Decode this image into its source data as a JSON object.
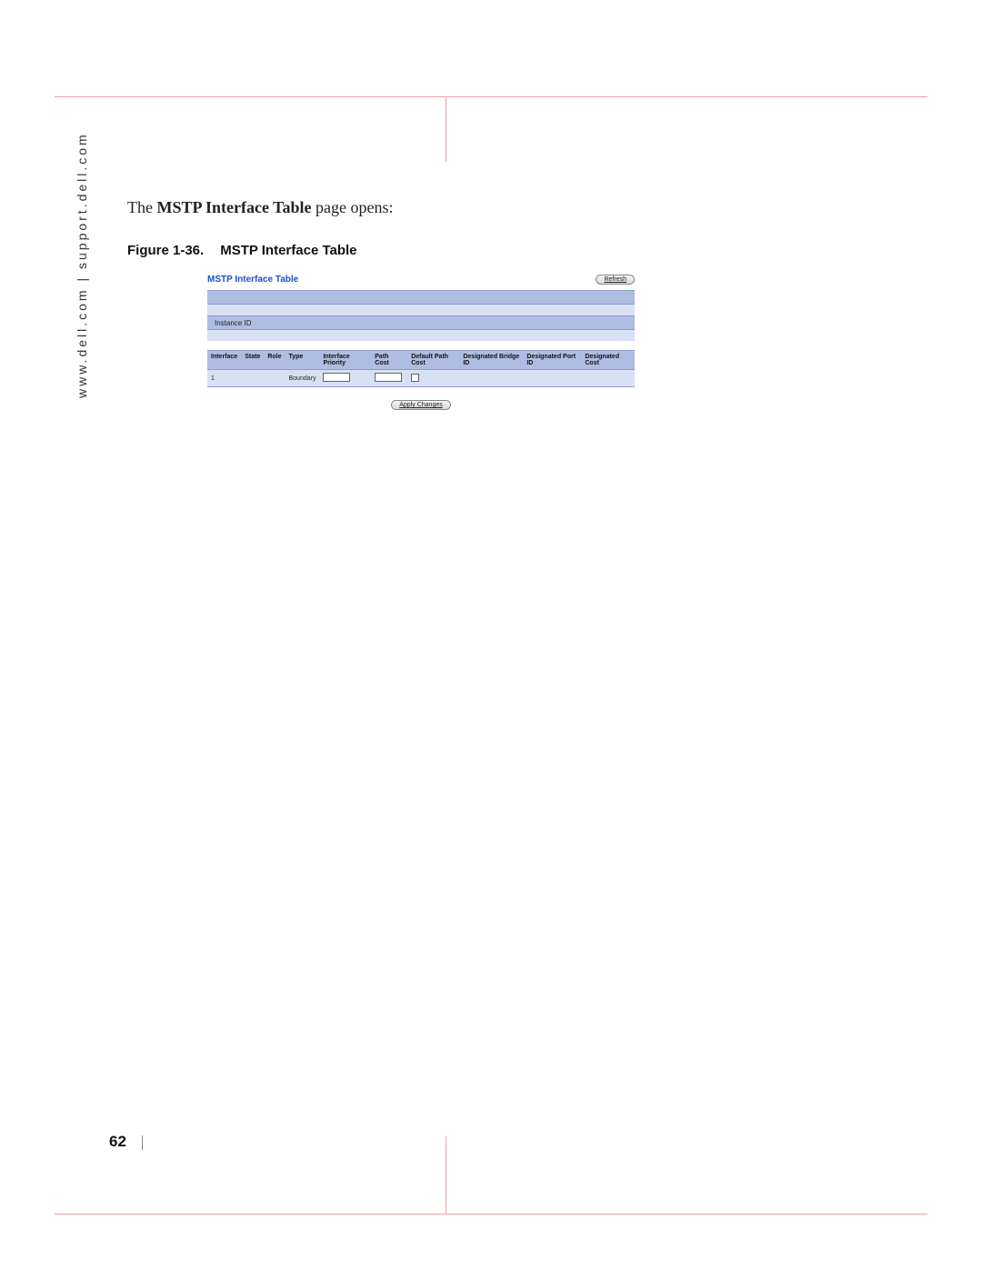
{
  "side_url": "www.dell.com | support.dell.com",
  "intro": {
    "prefix": "The ",
    "bold": "MSTP Interface Table",
    "suffix": " page opens:"
  },
  "figure": {
    "number": "Figure 1-36.",
    "title": "MSTP Interface Table"
  },
  "screenshot": {
    "title": "MSTP Interface Table",
    "refresh_label": "Refresh",
    "instance_label": "Instance ID",
    "columns": {
      "c0": "Interface",
      "c1": "State",
      "c2": "Role",
      "c3": "Type",
      "c4": "Interface Priority",
      "c5": "Path Cost",
      "c6": "Default Path Cost",
      "c7": "Designated Bridge ID",
      "c8": "Designated Port ID",
      "c9": "Designated Cost"
    },
    "row1": {
      "iface": "1",
      "type_val": "Boundary"
    },
    "apply_label": "Apply Changes"
  },
  "page_number": "62",
  "colors": {
    "rule": "#e9a0a5",
    "band_dark": "#aebde2",
    "band_light": "#d8e0f3",
    "band_border": "#8aa0d8",
    "link_blue": "#1a4fd6"
  }
}
